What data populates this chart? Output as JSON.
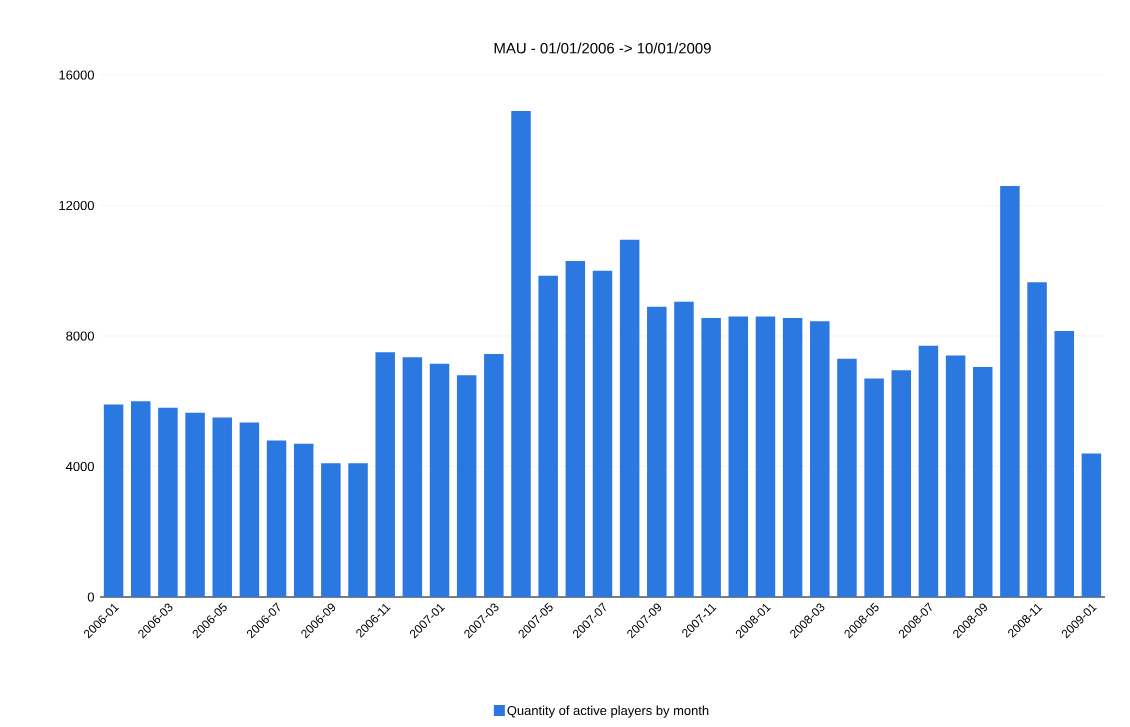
{
  "chart_data": {
    "type": "bar",
    "title": "MAU - 01/01/2006 -> 10/01/2009",
    "categories": [
      "2006-01",
      null,
      "2006-03",
      null,
      "2006-05",
      null,
      "2006-07",
      null,
      "2006-09",
      null,
      "2006-11",
      null,
      "2007-01",
      null,
      "2007-03",
      null,
      "2007-05",
      null,
      "2007-07",
      null,
      "2007-09",
      null,
      "2007-11",
      null,
      "2008-01",
      null,
      "2008-03",
      null,
      "2008-05",
      null,
      "2008-07",
      null,
      "2008-09",
      null,
      "2008-11",
      null,
      "2009-01"
    ],
    "series": [
      {
        "name": "Quantity of active players by month",
        "color": "#2a78e0",
        "values": [
          5900,
          6000,
          5800,
          5650,
          5500,
          5350,
          4800,
          4700,
          4100,
          4100,
          7500,
          7350,
          7150,
          6800,
          7450,
          14900,
          9850,
          10300,
          10000,
          10950,
          8900,
          9050,
          8550,
          8600,
          8600,
          8550,
          8450,
          7300,
          6700,
          6950,
          7700,
          7400,
          7050,
          12600,
          9650,
          8150,
          4400
        ]
      }
    ],
    "ylim": [
      0,
      16000
    ],
    "yticks": [
      0,
      4000,
      8000,
      12000,
      16000
    ],
    "grid": "y",
    "legend": "bottom"
  }
}
